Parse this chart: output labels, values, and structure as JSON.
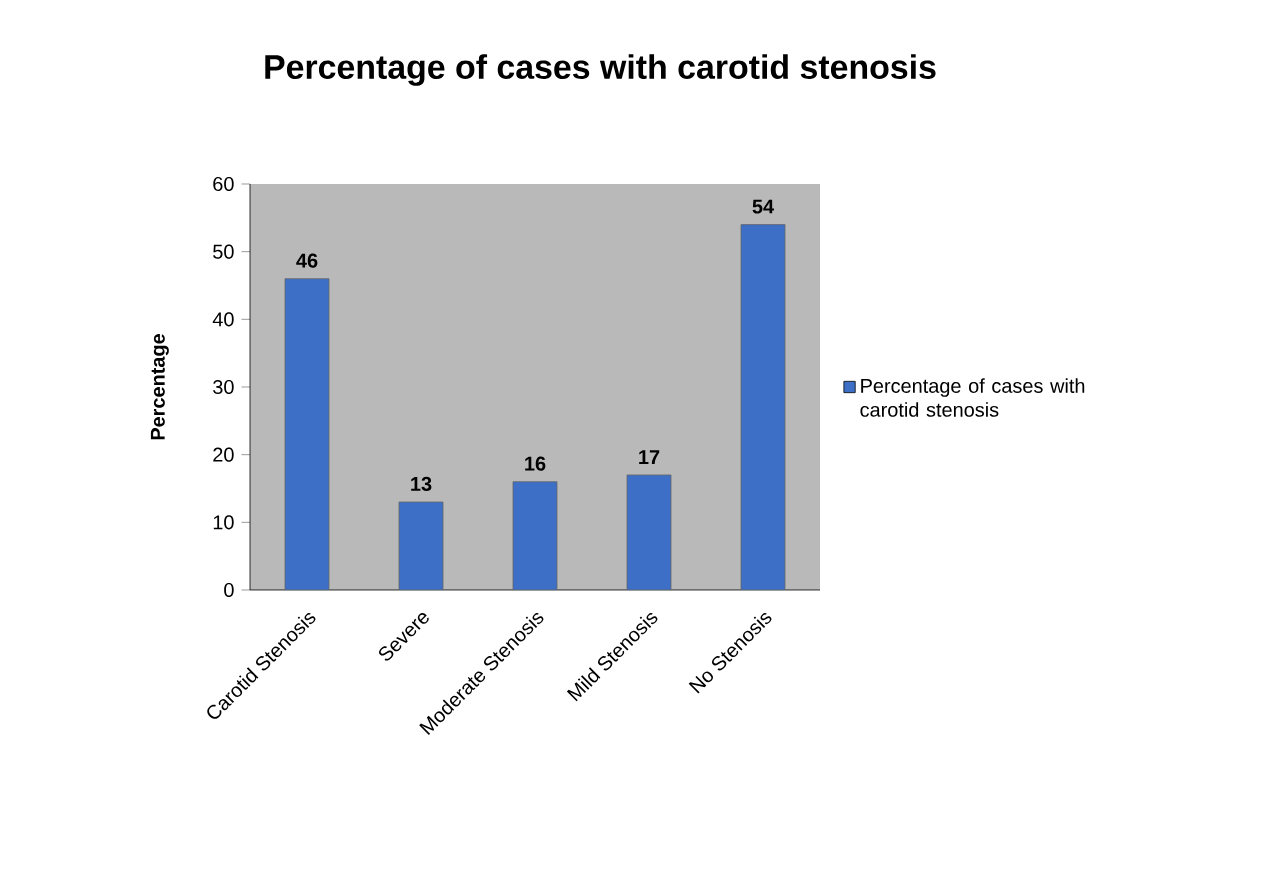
{
  "chart_data": {
    "type": "bar",
    "title": "Percentage of cases with carotid stenosis",
    "ylabel": "Percentage",
    "categories": [
      "Carotid Stenosis",
      "Severe",
      "Moderate Stenosis",
      "Mild Stenosis",
      "No Stenosis"
    ],
    "series": [
      {
        "name": "Percentage of cases with carotid stenosis",
        "color": "#3d6fc6",
        "values": [
          46,
          13,
          16,
          17,
          54
        ]
      }
    ],
    "ylim": [
      0,
      60
    ],
    "yticks": [
      0,
      10,
      20,
      30,
      40,
      50,
      60
    ],
    "data_labels": true,
    "legend": "right",
    "grid": false
  }
}
